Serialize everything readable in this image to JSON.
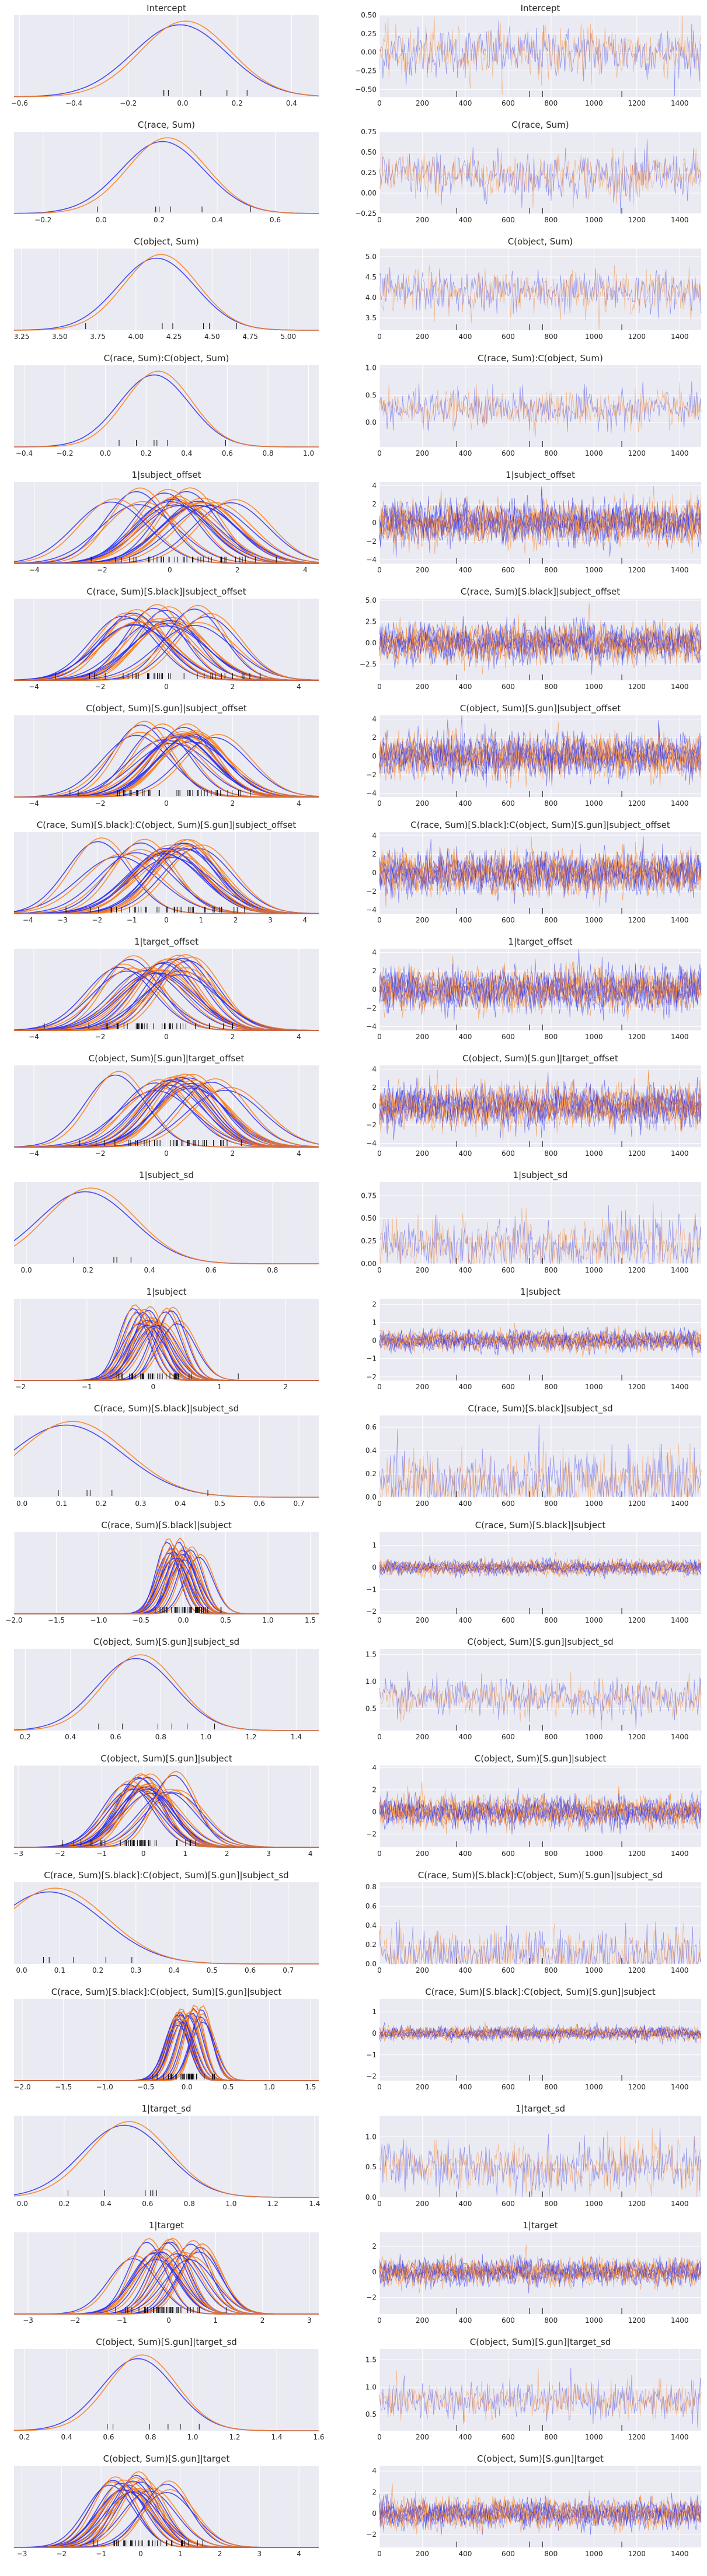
{
  "chart_data": {
    "type": "line",
    "description_free": true,
    "colors": {
      "chain_a": "#2a2eec",
      "chain_b": "#fa7c17",
      "panel_bg": "#eaeaf2",
      "grid": "#ffffff",
      "rug": "#000000"
    },
    "grid": true,
    "trace_xticks": [
      "0",
      "200",
      "400",
      "600",
      "800",
      "1000",
      "1200",
      "1400"
    ],
    "trace_xlim": [
      0,
      1500
    ],
    "rows": [
      {
        "title": "Intercept",
        "kde_xticks": [
          "−0.6",
          "−0.4",
          "−0.2",
          "0.0",
          "0.2",
          "0.4"
        ],
        "kde_xlim": [
          -0.62,
          0.5
        ],
        "trace_yticks": [
          "−0.50",
          "−0.25",
          "0.00",
          "0.25",
          "0.50"
        ],
        "trace_ylim": [
          -0.6,
          0.5
        ],
        "center": 0.0,
        "spread": 0.17,
        "n_lines": 1
      },
      {
        "title": "C(race, Sum)",
        "kde_xticks": [
          "−0.2",
          "0.0",
          "0.2",
          "0.4",
          "0.6"
        ],
        "kde_xlim": [
          -0.3,
          0.75
        ],
        "trace_yticks": [
          "−0.25",
          "0.00",
          "0.25",
          "0.50",
          "0.75"
        ],
        "trace_ylim": [
          -0.25,
          0.75
        ],
        "center": 0.22,
        "spread": 0.14,
        "n_lines": 1
      },
      {
        "title": "C(object, Sum)",
        "kde_xticks": [
          "3.25",
          "3.50",
          "3.75",
          "4.00",
          "4.25",
          "4.50",
          "4.75",
          "5.00"
        ],
        "kde_xlim": [
          3.2,
          5.2
        ],
        "trace_yticks": [
          "3.5",
          "4.0",
          "4.5",
          "5.0"
        ],
        "trace_ylim": [
          3.2,
          5.2
        ],
        "center": 4.15,
        "spread": 0.25,
        "n_lines": 1
      },
      {
        "title": "C(race, Sum):C(object, Sum)",
        "kde_xticks": [
          "−0.4",
          "−0.2",
          "0.0",
          "0.2",
          "0.4",
          "0.6",
          "0.8",
          "1.0"
        ],
        "kde_xlim": [
          -0.45,
          1.05
        ],
        "trace_yticks": [
          "0.0",
          "0.5",
          "1.0"
        ],
        "trace_ylim": [
          -0.45,
          1.05
        ],
        "center": 0.25,
        "spread": 0.17,
        "n_lines": 1
      },
      {
        "title": "1|subject_offset",
        "kde_xticks": [
          "−4",
          "−2",
          "0",
          "2",
          "4"
        ],
        "kde_xlim": [
          -4.6,
          4.4
        ],
        "trace_yticks": [
          "−4",
          "−2",
          "0",
          "2",
          "4"
        ],
        "trace_ylim": [
          -4.4,
          4.4
        ],
        "center": 0.0,
        "spread": 1.0,
        "n_lines": 14
      },
      {
        "title": "C(race, Sum)[S.black]|subject_offset",
        "kde_xticks": [
          "−4",
          "−2",
          "0",
          "2",
          "4"
        ],
        "kde_xlim": [
          -4.6,
          4.6
        ],
        "trace_yticks": [
          "−2.5",
          "0.0",
          "2.5",
          "5.0"
        ],
        "trace_ylim": [
          -4.4,
          5.2
        ],
        "center": 0.0,
        "spread": 1.0,
        "n_lines": 14
      },
      {
        "title": "C(object, Sum)[S.gun]|subject_offset",
        "kde_xticks": [
          "−4",
          "−2",
          "0",
          "2",
          "4"
        ],
        "kde_xlim": [
          -4.6,
          4.6
        ],
        "trace_yticks": [
          "−4",
          "−2",
          "0",
          "2",
          "4"
        ],
        "trace_ylim": [
          -4.4,
          4.4
        ],
        "center": 0.0,
        "spread": 1.0,
        "n_lines": 14
      },
      {
        "title": "C(race, Sum)[S.black]:C(object, Sum)[S.gun]|subject_offset",
        "kde_xticks": [
          "−4",
          "−3",
          "−2",
          "−1",
          "0",
          "1",
          "2",
          "3",
          "4"
        ],
        "kde_xlim": [
          -4.4,
          4.4
        ],
        "trace_yticks": [
          "−4",
          "−2",
          "0",
          "2",
          "4"
        ],
        "trace_ylim": [
          -4.4,
          4.4
        ],
        "center": 0.0,
        "spread": 1.0,
        "n_lines": 14
      },
      {
        "title": "1|target_offset",
        "kde_xticks": [
          "−4",
          "−2",
          "0",
          "2",
          "4"
        ],
        "kde_xlim": [
          -4.6,
          4.6
        ],
        "trace_yticks": [
          "−4",
          "−2",
          "0",
          "2",
          "4"
        ],
        "trace_ylim": [
          -4.4,
          4.4
        ],
        "center": 0.0,
        "spread": 1.0,
        "n_lines": 14
      },
      {
        "title": "C(object, Sum)[S.gun]|target_offset",
        "kde_xticks": [
          "−4",
          "−2",
          "0",
          "2",
          "4"
        ],
        "kde_xlim": [
          -4.6,
          4.6
        ],
        "trace_yticks": [
          "−4",
          "−2",
          "0",
          "2",
          "4"
        ],
        "trace_ylim": [
          -4.4,
          4.4
        ],
        "center": 0.0,
        "spread": 1.0,
        "n_lines": 14
      },
      {
        "title": "1|subject_sd",
        "kde_xticks": [
          "0.0",
          "0.2",
          "0.4",
          "0.6",
          "0.8"
        ],
        "kde_xlim": [
          -0.04,
          0.95
        ],
        "trace_yticks": [
          "0.00",
          "0.25",
          "0.50",
          "0.75"
        ],
        "trace_ylim": [
          0,
          0.9
        ],
        "center": 0.2,
        "spread": 0.15,
        "n_lines": 1
      },
      {
        "title": "1|subject",
        "kde_xticks": [
          "−2",
          "−1",
          "0",
          "1",
          "2"
        ],
        "kde_xlim": [
          -2.1,
          2.5
        ],
        "trace_yticks": [
          "−2",
          "−1",
          "0",
          "1",
          "2"
        ],
        "trace_ylim": [
          -2.2,
          2.3
        ],
        "center": 0.0,
        "spread": 0.25,
        "n_lines": 14
      },
      {
        "title": "C(race, Sum)[S.black]|subject_sd",
        "kde_xticks": [
          "0.0",
          "0.1",
          "0.2",
          "0.3",
          "0.4",
          "0.5",
          "0.6",
          "0.7"
        ],
        "kde_xlim": [
          -0.02,
          0.75
        ],
        "trace_yticks": [
          "0.0",
          "0.2",
          "0.4",
          "0.6"
        ],
        "trace_ylim": [
          0,
          0.7
        ],
        "center": 0.12,
        "spread": 0.14,
        "n_lines": 1
      },
      {
        "title": "C(race, Sum)[S.black]|subject",
        "kde_xticks": [
          "−2.0",
          "−1.5",
          "−1.0",
          "−0.5",
          "0.0",
          "0.5",
          "1.0",
          "1.5"
        ],
        "kde_xlim": [
          -2.0,
          1.6
        ],
        "trace_yticks": [
          "−2",
          "−1",
          "0",
          "1"
        ],
        "trace_ylim": [
          -2.1,
          1.6
        ],
        "center": 0.0,
        "spread": 0.15,
        "n_lines": 14
      },
      {
        "title": "C(object, Sum)[S.gun]|subject_sd",
        "kde_xticks": [
          "0.2",
          "0.4",
          "0.6",
          "0.8",
          "1.0",
          "1.2",
          "1.4"
        ],
        "kde_xlim": [
          0.15,
          1.5
        ],
        "trace_yticks": [
          "0.5",
          "1.0",
          "1.5"
        ],
        "trace_ylim": [
          0.1,
          1.6
        ],
        "center": 0.7,
        "spread": 0.17,
        "n_lines": 1
      },
      {
        "title": "C(object, Sum)[S.gun]|subject",
        "kde_xticks": [
          "−3",
          "−2",
          "−1",
          "0",
          "1",
          "2",
          "3",
          "4"
        ],
        "kde_xlim": [
          -3.1,
          4.2
        ],
        "trace_yticks": [
          "−2",
          "0",
          "2",
          "4"
        ],
        "trace_ylim": [
          -3.2,
          4.2
        ],
        "center": 0.0,
        "spread": 0.6,
        "n_lines": 14
      },
      {
        "title": "C(race, Sum)[S.black]:C(object, Sum)[S.gun]|subject_sd",
        "kde_xticks": [
          "0.0",
          "0.1",
          "0.2",
          "0.3",
          "0.4",
          "0.5",
          "0.6",
          "0.7"
        ],
        "kde_xlim": [
          -0.02,
          0.78
        ],
        "trace_yticks": [
          "0.0",
          "0.2",
          "0.4",
          "0.6",
          "0.8"
        ],
        "trace_ylim": [
          0,
          0.85
        ],
        "center": 0.08,
        "spread": 0.14,
        "n_lines": 1
      },
      {
        "title": "C(race, Sum)[S.black]:C(object, Sum)[S.gun]|subject",
        "kde_xticks": [
          "−2.0",
          "−1.5",
          "−1.0",
          "−0.5",
          "0.0",
          "0.5",
          "1.0",
          "1.5"
        ],
        "kde_xlim": [
          -2.1,
          1.6
        ],
        "trace_yticks": [
          "−2",
          "−1",
          "0",
          "1"
        ],
        "trace_ylim": [
          -2.2,
          1.6
        ],
        "center": 0.0,
        "spread": 0.14,
        "n_lines": 14
      },
      {
        "title": "1|target_sd",
        "kde_xticks": [
          "0.0",
          "0.2",
          "0.4",
          "0.6",
          "0.8",
          "1.0",
          "1.2",
          "1.4"
        ],
        "kde_xlim": [
          -0.04,
          1.42
        ],
        "trace_yticks": [
          "0.0",
          "0.5",
          "1.0"
        ],
        "trace_ylim": [
          0,
          1.35
        ],
        "center": 0.5,
        "spread": 0.2,
        "n_lines": 1
      },
      {
        "title": "1|target",
        "kde_xticks": [
          "−3",
          "−2",
          "−1",
          "0",
          "1",
          "2",
          "3"
        ],
        "kde_xlim": [
          -3.3,
          3.2
        ],
        "trace_yticks": [
          "−2",
          "0",
          "2"
        ],
        "trace_ylim": [
          -3.3,
          3.1
        ],
        "center": 0.0,
        "spread": 0.45,
        "n_lines": 14
      },
      {
        "title": "C(object, Sum)[S.gun]|target_sd",
        "kde_xticks": [
          "0.2",
          "0.4",
          "0.6",
          "0.8",
          "1.0",
          "1.2",
          "1.4",
          "1.6"
        ],
        "kde_xlim": [
          0.15,
          1.6
        ],
        "trace_yticks": [
          "0.5",
          "1.0",
          "1.5"
        ],
        "trace_ylim": [
          0.2,
          1.7
        ],
        "center": 0.75,
        "spread": 0.17,
        "n_lines": 1
      },
      {
        "title": "C(object, Sum)[S.gun]|target",
        "kde_xticks": [
          "−3",
          "−2",
          "−1",
          "0",
          "1",
          "2",
          "3",
          "4"
        ],
        "kde_xlim": [
          -3.2,
          4.5
        ],
        "trace_yticks": [
          "−2",
          "0",
          "2",
          "4"
        ],
        "trace_ylim": [
          -3.2,
          4.5
        ],
        "center": 0.0,
        "spread": 0.6,
        "n_lines": 14
      }
    ]
  }
}
